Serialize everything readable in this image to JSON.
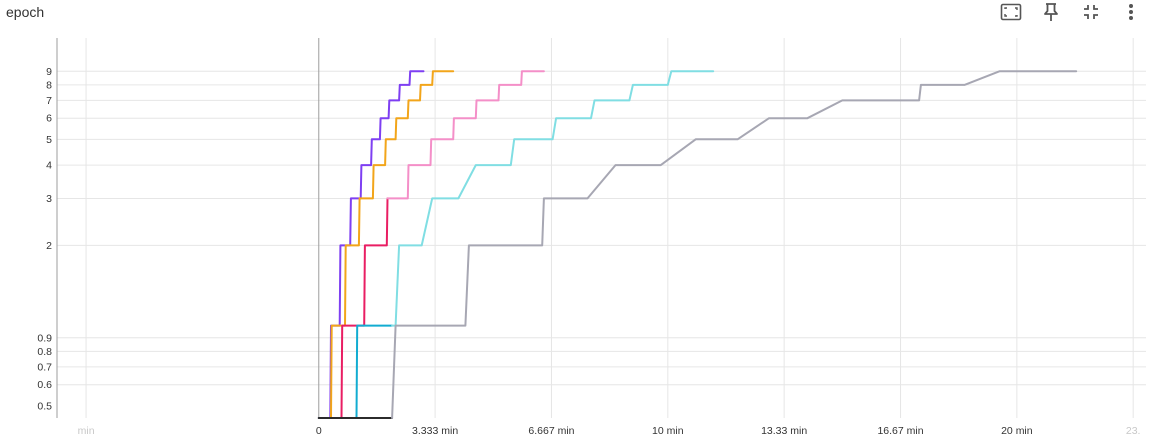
{
  "panel": {
    "title": "epoch",
    "toolbar": [
      {
        "name": "fit-domain-icon",
        "label": "Fit domain to data"
      },
      {
        "name": "pin-icon",
        "label": "Pin card"
      },
      {
        "name": "fullscreen-exit-icon",
        "label": "Toggle fullscreen"
      },
      {
        "name": "more-vert-icon",
        "label": "More options"
      }
    ]
  },
  "chart_data": {
    "type": "line",
    "title": "epoch",
    "xlabel": "",
    "ylabel": "",
    "x_unit": "min",
    "xlim": [
      -7.5,
      23.7
    ],
    "ylim": [
      0.45,
      12
    ],
    "y_scale": "log",
    "grid": true,
    "x_ticks": [
      "min",
      "0",
      "3.333 min",
      "6.667 min",
      "10 min",
      "13.33 min",
      "16.67 min",
      "20 min",
      "23."
    ],
    "x_tick_values": [
      -6.667,
      0,
      3.333,
      6.667,
      10,
      13.333,
      16.667,
      20,
      23.333
    ],
    "x_ticks_faded": [
      true,
      false,
      false,
      false,
      false,
      false,
      false,
      false,
      true
    ],
    "y_ticks": [
      "0.5",
      "0.6",
      "0.7",
      "0.8",
      "0.9",
      "2",
      "3",
      "4",
      "5",
      "6",
      "7",
      "8",
      "9"
    ],
    "y_tick_values": [
      0.5,
      0.6,
      0.7,
      0.8,
      0.9,
      2,
      3,
      4,
      5,
      6,
      7,
      8,
      9
    ],
    "series": [
      {
        "color": "#7e3ff2",
        "values": [
          [
            0,
            0
          ],
          [
            0.33,
            0
          ],
          [
            0.35,
            1
          ],
          [
            0.6,
            1
          ],
          [
            0.62,
            2
          ],
          [
            0.9,
            2
          ],
          [
            0.92,
            3
          ],
          [
            1.2,
            3
          ],
          [
            1.22,
            4
          ],
          [
            1.5,
            4
          ],
          [
            1.52,
            5
          ],
          [
            1.75,
            5
          ],
          [
            1.77,
            6
          ],
          [
            2.0,
            6
          ],
          [
            2.02,
            7
          ],
          [
            2.3,
            7
          ],
          [
            2.32,
            8
          ],
          [
            2.6,
            8
          ],
          [
            2.62,
            9
          ],
          [
            3.0,
            9
          ]
        ]
      },
      {
        "color": "#f2a51a",
        "values": [
          [
            0,
            0
          ],
          [
            0.35,
            0
          ],
          [
            0.37,
            1
          ],
          [
            0.75,
            1
          ],
          [
            0.77,
            2
          ],
          [
            1.15,
            2
          ],
          [
            1.17,
            3
          ],
          [
            1.55,
            3
          ],
          [
            1.57,
            4
          ],
          [
            1.9,
            4
          ],
          [
            1.92,
            5
          ],
          [
            2.2,
            5
          ],
          [
            2.22,
            6
          ],
          [
            2.55,
            6
          ],
          [
            2.57,
            7
          ],
          [
            2.9,
            7
          ],
          [
            2.92,
            8
          ],
          [
            3.25,
            8
          ],
          [
            3.27,
            9
          ],
          [
            3.85,
            9
          ]
        ]
      },
      {
        "color": "#e91e63",
        "values": [
          [
            0,
            0
          ],
          [
            0.65,
            0
          ],
          [
            0.67,
            1
          ],
          [
            1.3,
            1
          ],
          [
            1.32,
            2
          ],
          [
            1.95,
            2
          ],
          [
            1.97,
            3
          ]
        ]
      },
      {
        "color": "#f48fc8",
        "values": [
          [
            1.97,
            3
          ],
          [
            2.55,
            3
          ],
          [
            2.57,
            4
          ],
          [
            3.2,
            4
          ],
          [
            3.22,
            5
          ],
          [
            3.85,
            5
          ],
          [
            3.87,
            6
          ],
          [
            4.5,
            6
          ],
          [
            4.52,
            7
          ],
          [
            5.15,
            7
          ],
          [
            5.17,
            8
          ],
          [
            5.8,
            8
          ],
          [
            5.82,
            9
          ],
          [
            6.45,
            9
          ]
        ]
      },
      {
        "color": "#12acd1",
        "values": [
          [
            0,
            0
          ],
          [
            1.08,
            0
          ],
          [
            1.1,
            1
          ],
          [
            2.1,
            1
          ]
        ]
      },
      {
        "color": "#80dee3",
        "values": [
          [
            2.1,
            1
          ],
          [
            2.2,
            1
          ],
          [
            2.3,
            2
          ],
          [
            2.95,
            2
          ],
          [
            3.25,
            3
          ],
          [
            4.0,
            3
          ],
          [
            4.5,
            4
          ],
          [
            5.5,
            4
          ],
          [
            5.6,
            5
          ],
          [
            6.7,
            5
          ],
          [
            6.8,
            6
          ],
          [
            7.8,
            6
          ],
          [
            7.9,
            7
          ],
          [
            8.9,
            7
          ],
          [
            9.0,
            8
          ],
          [
            10.0,
            8
          ],
          [
            10.1,
            9
          ],
          [
            11.3,
            9
          ]
        ]
      },
      {
        "color": "#2b2b2b",
        "values": [
          [
            0,
            0
          ],
          [
            2.1,
            0
          ]
        ]
      },
      {
        "color": "#a7a7b3",
        "values": [
          [
            2.1,
            0
          ],
          [
            2.2,
            1
          ],
          [
            4.2,
            1
          ],
          [
            4.3,
            2
          ],
          [
            6.4,
            2
          ],
          [
            6.45,
            3
          ],
          [
            7.7,
            3
          ],
          [
            8.5,
            4
          ],
          [
            9.8,
            4
          ],
          [
            10.8,
            5
          ],
          [
            12.0,
            5
          ],
          [
            12.9,
            6
          ],
          [
            14.0,
            6
          ],
          [
            15.0,
            7
          ],
          [
            17.2,
            7
          ],
          [
            17.25,
            8
          ],
          [
            18.5,
            8
          ],
          [
            19.5,
            9
          ],
          [
            21.7,
            9
          ]
        ]
      }
    ]
  }
}
